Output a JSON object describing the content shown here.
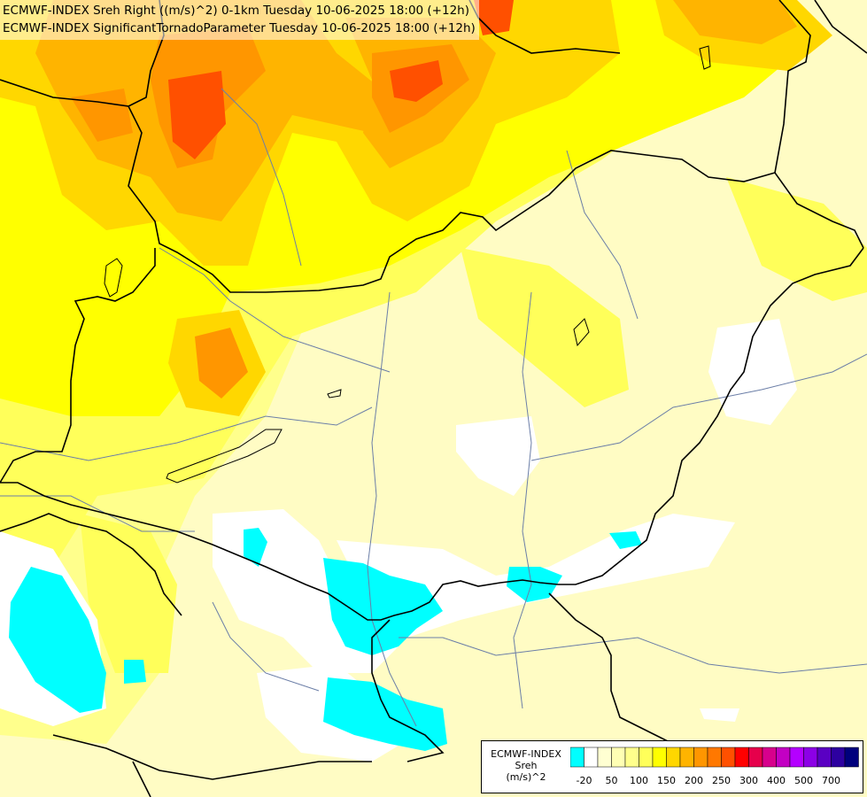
{
  "title": {
    "line1": "ECMWF-INDEX Sreh Right ((m/s)^2) 0-1km Tuesday 10-06-2025 18:00 (+12h)",
    "line2": "ECMWF-INDEX SignificantTornadoParameter Tuesday 10-06-2025 18:00 (+12h)"
  },
  "legend": {
    "line1": "ECMWF-INDEX",
    "line2": "Sreh",
    "line3": "(m/s)^2",
    "colors": [
      "#00ffff",
      "#ffffff",
      "#ffffd2",
      "#ffffb4",
      "#ffff8c",
      "#ffff5a",
      "#ffff00",
      "#ffd700",
      "#ffb400",
      "#ff9600",
      "#ff7800",
      "#ff5000",
      "#ff0000",
      "#e6004b",
      "#d7008c",
      "#c300c3",
      "#b400ff",
      "#8c00e6",
      "#5a00c3",
      "#2d00a0",
      "#00007d"
    ],
    "ticks": [
      "-20",
      "50",
      "100",
      "150",
      "200",
      "250",
      "300",
      "400",
      "500",
      "700"
    ]
  },
  "colors": {
    "cyan": "#00ffff",
    "white": "#ffffff",
    "pale_yellow": "#ffffb4",
    "light_yellow": "#ffff8c",
    "yellow": "#ffff00",
    "gold": "#ffd700",
    "orange": "#ffb400",
    "dark_orange": "#ff9600",
    "red_orange": "#ff5000",
    "red": "#ff0000",
    "border": "#000000",
    "river": "#6b7ea7"
  }
}
